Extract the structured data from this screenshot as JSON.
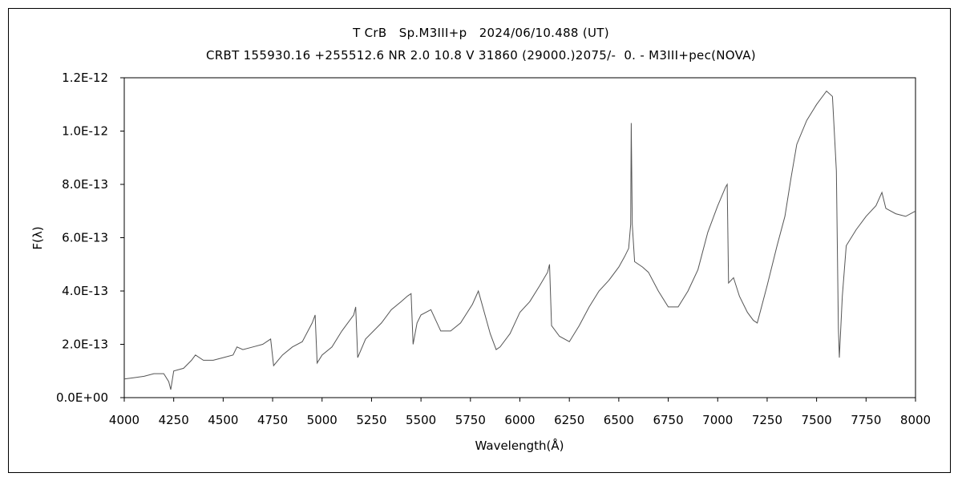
{
  "chart_data": {
    "type": "line",
    "title": "T CrB　Sp.M3III+p　2024/06/10.488 (UT)",
    "subtitle": "CRBT 155930.16 +255512.6 NR 2.0 10.8 V 31860 (29000.)2075/-  0. - M3III+pec(NOVA)",
    "xlabel": "Wavelength(Å)",
    "ylabel": "F(λ)",
    "xlim": [
      4000,
      8000
    ],
    "ylim": [
      0,
      1.2e-12
    ],
    "xticks": [
      "4000",
      "4250",
      "4500",
      "4750",
      "5000",
      "5250",
      "5500",
      "5750",
      "6000",
      "6250",
      "6500",
      "6750",
      "7000",
      "7250",
      "7500",
      "7750",
      "8000"
    ],
    "yticks": [
      "0.0E+00",
      "2.0E-13",
      "4.0E-13",
      "6.0E-13",
      "8.0E-13",
      "1.0E-12",
      "1.2E-12"
    ],
    "grid": false,
    "series": [
      {
        "points": [
          [
            4000,
            7e-14
          ],
          [
            4050,
            7.5e-14
          ],
          [
            4100,
            8e-14
          ],
          [
            4150,
            9e-14
          ],
          [
            4200,
            9e-14
          ],
          [
            4225,
            6e-14
          ],
          [
            4235,
            3e-14
          ],
          [
            4250,
            1e-13
          ],
          [
            4300,
            1.1e-13
          ],
          [
            4340,
            1.4e-13
          ],
          [
            4360,
            1.6e-13
          ],
          [
            4400,
            1.4e-13
          ],
          [
            4450,
            1.4e-13
          ],
          [
            4500,
            1.5e-13
          ],
          [
            4550,
            1.6e-13
          ],
          [
            4570,
            1.9e-13
          ],
          [
            4600,
            1.8e-13
          ],
          [
            4650,
            1.9e-13
          ],
          [
            4700,
            2e-13
          ],
          [
            4740,
            2.2e-13
          ],
          [
            4755,
            1.2e-13
          ],
          [
            4800,
            1.6e-13
          ],
          [
            4850,
            1.9e-13
          ],
          [
            4900,
            2.1e-13
          ],
          [
            4950,
            2.8e-13
          ],
          [
            4965,
            3.1e-13
          ],
          [
            4975,
            1.3e-13
          ],
          [
            5000,
            1.6e-13
          ],
          [
            5050,
            1.9e-13
          ],
          [
            5100,
            2.5e-13
          ],
          [
            5160,
            3.1e-13
          ],
          [
            5170,
            3.4e-13
          ],
          [
            5180,
            1.5e-13
          ],
          [
            5220,
            2.2e-13
          ],
          [
            5300,
            2.8e-13
          ],
          [
            5350,
            3.3e-13
          ],
          [
            5400,
            3.6e-13
          ],
          [
            5430,
            3.8e-13
          ],
          [
            5450,
            3.9e-13
          ],
          [
            5460,
            2e-13
          ],
          [
            5480,
            2.8e-13
          ],
          [
            5500,
            3.1e-13
          ],
          [
            5550,
            3.3e-13
          ],
          [
            5600,
            2.5e-13
          ],
          [
            5650,
            2.5e-13
          ],
          [
            5700,
            2.8e-13
          ],
          [
            5760,
            3.5e-13
          ],
          [
            5790,
            4e-13
          ],
          [
            5820,
            3.2e-13
          ],
          [
            5850,
            2.4e-13
          ],
          [
            5880,
            1.8e-13
          ],
          [
            5900,
            1.9e-13
          ],
          [
            5950,
            2.4e-13
          ],
          [
            6000,
            3.2e-13
          ],
          [
            6050,
            3.6e-13
          ],
          [
            6100,
            4.2e-13
          ],
          [
            6140,
            4.7e-13
          ],
          [
            6150,
            5e-13
          ],
          [
            6160,
            2.7e-13
          ],
          [
            6200,
            2.3e-13
          ],
          [
            6250,
            2.1e-13
          ],
          [
            6300,
            2.7e-13
          ],
          [
            6350,
            3.4e-13
          ],
          [
            6400,
            4e-13
          ],
          [
            6450,
            4.4e-13
          ],
          [
            6500,
            4.9e-13
          ],
          [
            6530,
            5.3e-13
          ],
          [
            6550,
            5.6e-13
          ],
          [
            6560,
            6.5e-13
          ],
          [
            6563,
            1.03e-12
          ],
          [
            6568,
            6.5e-13
          ],
          [
            6580,
            5.1e-13
          ],
          [
            6620,
            4.9e-13
          ],
          [
            6650,
            4.7e-13
          ],
          [
            6700,
            4e-13
          ],
          [
            6750,
            3.4e-13
          ],
          [
            6800,
            3.4e-13
          ],
          [
            6850,
            4e-13
          ],
          [
            6900,
            4.8e-13
          ],
          [
            6950,
            6.2e-13
          ],
          [
            7000,
            7.2e-13
          ],
          [
            7040,
            7.9e-13
          ],
          [
            7048,
            8e-13
          ],
          [
            7055,
            4.3e-13
          ],
          [
            7080,
            4.5e-13
          ],
          [
            7110,
            3.8e-13
          ],
          [
            7150,
            3.2e-13
          ],
          [
            7180,
            2.9e-13
          ],
          [
            7200,
            2.8e-13
          ],
          [
            7250,
            4.2e-13
          ],
          [
            7300,
            5.7e-13
          ],
          [
            7340,
            6.8e-13
          ],
          [
            7370,
            8.2e-13
          ],
          [
            7400,
            9.5e-13
          ],
          [
            7450,
            1.04e-12
          ],
          [
            7500,
            1.1e-12
          ],
          [
            7550,
            1.15e-12
          ],
          [
            7580,
            1.13e-12
          ],
          [
            7600,
            8.5e-13
          ],
          [
            7610,
            2.6e-13
          ],
          [
            7615,
            1.5e-13
          ],
          [
            7630,
            3.8e-13
          ],
          [
            7650,
            5.7e-13
          ],
          [
            7700,
            6.3e-13
          ],
          [
            7750,
            6.8e-13
          ],
          [
            7800,
            7.2e-13
          ],
          [
            7830,
            7.7e-13
          ],
          [
            7850,
            7.1e-13
          ],
          [
            7900,
            6.9e-13
          ],
          [
            7950,
            6.8e-13
          ],
          [
            8000,
            7e-13
          ]
        ]
      }
    ]
  }
}
